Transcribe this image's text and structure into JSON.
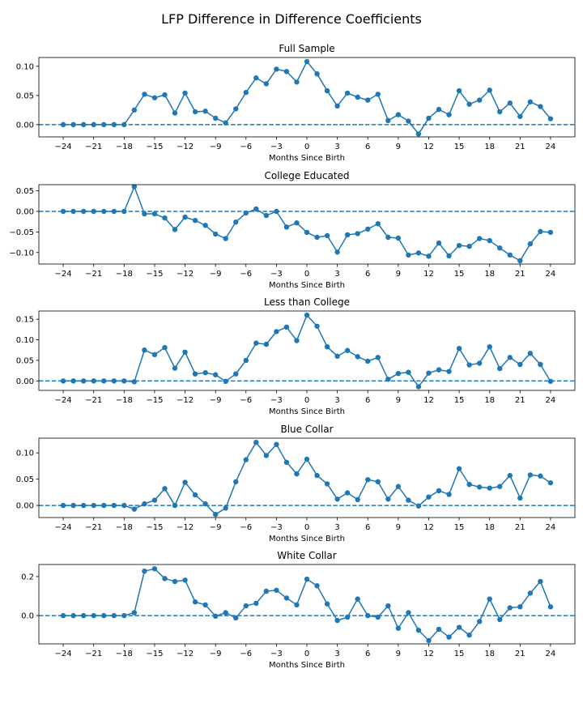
{
  "suptitle": "LFP Difference in Difference Coefficients",
  "colors": {
    "line": "#1f77b4",
    "axis": "#000000"
  },
  "chart_data": [
    {
      "type": "line",
      "title": "Full Sample",
      "xlabel": "Months Since Birth",
      "ylabel": "",
      "x": [
        -24,
        -23,
        -22,
        -21,
        -20,
        -19,
        -18,
        -17,
        -16,
        -15,
        -14,
        -13,
        -12,
        -11,
        -10,
        -9,
        -8,
        -7,
        -6,
        -5,
        -4,
        -3,
        -2,
        -1,
        0,
        1,
        2,
        3,
        4,
        5,
        6,
        7,
        8,
        9,
        10,
        11,
        12,
        13,
        14,
        15,
        16,
        17,
        18,
        19,
        20,
        21,
        22,
        23,
        24
      ],
      "values": [
        0,
        0,
        0,
        0,
        0,
        0,
        0,
        0.025,
        0.052,
        0.046,
        0.051,
        0.02,
        0.054,
        0.022,
        0.023,
        0.011,
        0.003,
        0.027,
        0.055,
        0.08,
        0.07,
        0.095,
        0.091,
        0.073,
        0.108,
        0.087,
        0.058,
        0.032,
        0.054,
        0.047,
        0.042,
        0.052,
        0.007,
        0.017,
        0.006,
        -0.016,
        0.011,
        0.026,
        0.017,
        0.058,
        0.035,
        0.042,
        0.059,
        0.022,
        0.037,
        0.014,
        0.039,
        0.031,
        0.01
      ],
      "xticks": [
        -24,
        -21,
        -18,
        -15,
        -12,
        -9,
        -6,
        -3,
        0,
        3,
        6,
        9,
        12,
        15,
        18,
        21,
        24
      ],
      "xtick_labels": [
        "−24",
        "−21",
        "−18",
        "−15",
        "−12",
        "−9",
        "−6",
        "−3",
        "0",
        "3",
        "6",
        "9",
        "12",
        "15",
        "18",
        "21",
        "24"
      ],
      "yticks": [
        0,
        0.05,
        0.1
      ],
      "ytick_labels": [
        "0.00",
        "0.05",
        "0.10"
      ],
      "xlim": [
        -26.4,
        26.4
      ],
      "ylim": [
        -0.021,
        0.115
      ],
      "zero_line": "dashed"
    },
    {
      "type": "line",
      "title": "College Educated",
      "xlabel": "Months Since Birth",
      "ylabel": "",
      "x": [
        -24,
        -23,
        -22,
        -21,
        -20,
        -19,
        -18,
        -17,
        -16,
        -15,
        -14,
        -13,
        -12,
        -11,
        -10,
        -9,
        -8,
        -7,
        -6,
        -5,
        -4,
        -3,
        -2,
        -1,
        0,
        1,
        2,
        3,
        4,
        5,
        6,
        7,
        8,
        9,
        10,
        11,
        12,
        13,
        14,
        15,
        16,
        17,
        18,
        19,
        20,
        21,
        22,
        23,
        24
      ],
      "values": [
        0,
        0,
        0,
        0,
        0,
        0,
        0,
        0.06,
        -0.006,
        -0.006,
        -0.016,
        -0.044,
        -0.014,
        -0.022,
        -0.034,
        -0.055,
        -0.066,
        -0.026,
        -0.004,
        0.006,
        -0.01,
        0,
        -0.038,
        -0.028,
        -0.051,
        -0.063,
        -0.059,
        -0.099,
        -0.057,
        -0.054,
        -0.043,
        -0.03,
        -0.063,
        -0.065,
        -0.106,
        -0.101,
        -0.109,
        -0.077,
        -0.108,
        -0.083,
        -0.085,
        -0.066,
        -0.071,
        -0.089,
        -0.106,
        -0.12,
        -0.079,
        -0.049,
        -0.051
      ],
      "xticks": [
        -24,
        -21,
        -18,
        -15,
        -12,
        -9,
        -6,
        -3,
        0,
        3,
        6,
        9,
        12,
        15,
        18,
        21,
        24
      ],
      "xtick_labels": [
        "−24",
        "−21",
        "−18",
        "−15",
        "−12",
        "−9",
        "−6",
        "−3",
        "0",
        "3",
        "6",
        "9",
        "12",
        "15",
        "18",
        "21",
        "24"
      ],
      "yticks": [
        0.05,
        0,
        -0.05,
        -0.1
      ],
      "ytick_labels": [
        "0.05",
        "0.00",
        "−0.05",
        "−0.10"
      ],
      "xlim": [
        -26.4,
        26.4
      ],
      "ylim": [
        -0.128,
        0.065
      ],
      "zero_line": "dashed"
    },
    {
      "type": "line",
      "title": "Less than College",
      "xlabel": "Months Since Birth",
      "ylabel": "",
      "x": [
        -24,
        -23,
        -22,
        -21,
        -20,
        -19,
        -18,
        -17,
        -16,
        -15,
        -14,
        -13,
        -12,
        -11,
        -10,
        -9,
        -8,
        -7,
        -6,
        -5,
        -4,
        -3,
        -2,
        -1,
        0,
        1,
        2,
        3,
        4,
        5,
        6,
        7,
        8,
        9,
        10,
        11,
        12,
        13,
        14,
        15,
        16,
        17,
        18,
        19,
        20,
        21,
        22,
        23,
        24
      ],
      "values": [
        0,
        0,
        0,
        0,
        0,
        0,
        0,
        -0.002,
        0.075,
        0.064,
        0.081,
        0.031,
        0.07,
        0.017,
        0.02,
        0.015,
        -0.001,
        0.017,
        0.05,
        0.092,
        0.089,
        0.12,
        0.131,
        0.098,
        0.16,
        0.133,
        0.083,
        0.06,
        0.074,
        0.059,
        0.048,
        0.057,
        0.004,
        0.018,
        0.021,
        -0.014,
        0.019,
        0.027,
        0.023,
        0.079,
        0.039,
        0.043,
        0.083,
        0.03,
        0.057,
        0.04,
        0.067,
        0.04,
        -0.001
      ],
      "xticks": [
        -24,
        -21,
        -18,
        -15,
        -12,
        -9,
        -6,
        -3,
        0,
        3,
        6,
        9,
        12,
        15,
        18,
        21,
        24
      ],
      "xtick_labels": [
        "−24",
        "−21",
        "−18",
        "−15",
        "−12",
        "−9",
        "−6",
        "−3",
        "0",
        "3",
        "6",
        "9",
        "12",
        "15",
        "18",
        "21",
        "24"
      ],
      "yticks": [
        0,
        0.05,
        0.1,
        0.15
      ],
      "ytick_labels": [
        "0.00",
        "0.05",
        "0.10",
        "0.15"
      ],
      "xlim": [
        -26.4,
        26.4
      ],
      "ylim": [
        -0.023,
        0.17
      ],
      "zero_line": "dashed"
    },
    {
      "type": "line",
      "title": "Blue Collar",
      "xlabel": "Months Since Birth",
      "ylabel": "",
      "x": [
        -24,
        -23,
        -22,
        -21,
        -20,
        -19,
        -18,
        -17,
        -16,
        -15,
        -14,
        -13,
        -12,
        -11,
        -10,
        -9,
        -8,
        -7,
        -6,
        -5,
        -4,
        -3,
        -2,
        -1,
        0,
        1,
        2,
        3,
        4,
        5,
        6,
        7,
        8,
        9,
        10,
        11,
        12,
        13,
        14,
        15,
        16,
        17,
        18,
        19,
        20,
        21,
        22,
        23,
        24
      ],
      "values": [
        0,
        0,
        0,
        0,
        0,
        0,
        0,
        -0.007,
        0.003,
        0.01,
        0.032,
        0,
        0.044,
        0.02,
        0.003,
        -0.017,
        -0.005,
        0.045,
        0.087,
        0.12,
        0.095,
        0.116,
        0.082,
        0.06,
        0.088,
        0.057,
        0.041,
        0.012,
        0.024,
        0.011,
        0.049,
        0.045,
        0.012,
        0.036,
        0.01,
        -0.001,
        0.016,
        0.028,
        0.021,
        0.07,
        0.04,
        0.035,
        0.033,
        0.036,
        0.057,
        0.014,
        0.058,
        0.056,
        0.043
      ],
      "xticks": [
        -24,
        -21,
        -18,
        -15,
        -12,
        -9,
        -6,
        -3,
        0,
        3,
        6,
        9,
        12,
        15,
        18,
        21,
        24
      ],
      "xtick_labels": [
        "−24",
        "−21",
        "−18",
        "−15",
        "−12",
        "−9",
        "−6",
        "−3",
        "0",
        "3",
        "6",
        "9",
        "12",
        "15",
        "18",
        "21",
        "24"
      ],
      "yticks": [
        0,
        0.05,
        0.1
      ],
      "ytick_labels": [
        "0.00",
        "0.05",
        "0.10"
      ],
      "xlim": [
        -26.4,
        26.4
      ],
      "ylim": [
        -0.023,
        0.128
      ],
      "zero_line": "dashed"
    },
    {
      "type": "line",
      "title": "White Collar",
      "xlabel": "Months Since Birth",
      "ylabel": "",
      "x": [
        -24,
        -23,
        -22,
        -21,
        -20,
        -19,
        -18,
        -17,
        -16,
        -15,
        -14,
        -13,
        -12,
        -11,
        -10,
        -9,
        -8,
        -7,
        -6,
        -5,
        -4,
        -3,
        -2,
        -1,
        0,
        1,
        2,
        3,
        4,
        5,
        6,
        7,
        8,
        9,
        10,
        11,
        12,
        13,
        14,
        15,
        16,
        17,
        18,
        19,
        20,
        21,
        22,
        23,
        24
      ],
      "values": [
        0,
        0,
        0,
        0,
        0,
        0,
        0,
        0.015,
        0.228,
        0.24,
        0.19,
        0.175,
        0.182,
        0.07,
        0.055,
        -0.003,
        0.015,
        -0.012,
        0.05,
        0.063,
        0.125,
        0.13,
        0.09,
        0.055,
        0.187,
        0.153,
        0.06,
        -0.025,
        -0.008,
        0.085,
        0,
        -0.008,
        0.05,
        -0.065,
        0.015,
        -0.075,
        -0.128,
        -0.07,
        -0.11,
        -0.06,
        -0.1,
        -0.03,
        0.085,
        -0.02,
        0.04,
        0.045,
        0.115,
        0.175,
        0.045
      ],
      "xticks": [
        -24,
        -21,
        -18,
        -15,
        -12,
        -9,
        -6,
        -3,
        0,
        3,
        6,
        9,
        12,
        15,
        18,
        21,
        24
      ],
      "xtick_labels": [
        "−24",
        "−21",
        "−18",
        "−15",
        "−12",
        "−9",
        "−6",
        "−3",
        "0",
        "3",
        "6",
        "9",
        "12",
        "15",
        "18",
        "21",
        "24"
      ],
      "yticks": [
        0,
        0.2
      ],
      "ytick_labels": [
        "0.0",
        "0.2"
      ],
      "xlim": [
        -26.4,
        26.4
      ],
      "ylim": [
        -0.145,
        0.262
      ],
      "zero_line": "dashed"
    }
  ]
}
